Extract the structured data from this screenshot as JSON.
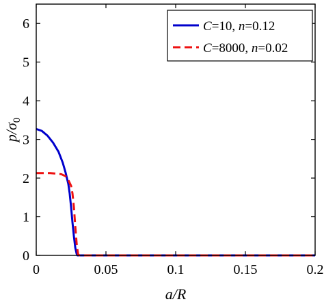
{
  "chart_data": {
    "type": "line",
    "xlabel": "a/R",
    "ylabel": "p/σ0",
    "xlim": [
      0,
      0.2
    ],
    "ylim": [
      0,
      6.5
    ],
    "x_ticks": [
      0,
      0.05,
      0.1,
      0.15,
      0.2
    ],
    "x_tick_labels": [
      "0",
      "0.05",
      "0.1",
      "0.15",
      "0.2"
    ],
    "y_ticks": [
      0,
      1,
      2,
      3,
      4,
      5,
      6
    ],
    "y_tick_labels": [
      "0",
      "1",
      "2",
      "3",
      "4",
      "5",
      "6"
    ],
    "grid": false,
    "legend_position": "top-right",
    "series": [
      {
        "name": "C=10, n=0.12",
        "legend_parts": [
          [
            "C",
            true
          ],
          [
            "=10, ",
            false
          ],
          [
            "n",
            true
          ],
          [
            "=0.12",
            false
          ]
        ],
        "color": "#0000cc",
        "style": "solid",
        "x": [
          0,
          0.004,
          0.008,
          0.012,
          0.016,
          0.019,
          0.021,
          0.023,
          0.024,
          0.025,
          0.026,
          0.027,
          0.028,
          0.029,
          0.0295,
          0.03,
          0.1,
          0.2
        ],
        "y": [
          3.27,
          3.22,
          3.1,
          2.92,
          2.68,
          2.4,
          2.15,
          1.85,
          1.6,
          1.25,
          0.85,
          0.5,
          0.2,
          0.04,
          0.0,
          0.0,
          0.0,
          0.0
        ]
      },
      {
        "name": "C=8000, n=0.02",
        "legend_parts": [
          [
            "C",
            true
          ],
          [
            "=8000, ",
            false
          ],
          [
            "n",
            true
          ],
          [
            "=0.02",
            false
          ]
        ],
        "color": "#ee1111",
        "style": "dashed",
        "x": [
          0,
          0.01,
          0.018,
          0.021,
          0.023,
          0.025,
          0.026,
          0.027,
          0.028,
          0.029,
          0.03,
          0.031,
          0.1,
          0.2
        ],
        "y": [
          2.13,
          2.13,
          2.1,
          2.05,
          1.95,
          1.8,
          1.6,
          1.25,
          0.75,
          0.3,
          0.03,
          0.0,
          0.0,
          0.0
        ]
      }
    ]
  }
}
